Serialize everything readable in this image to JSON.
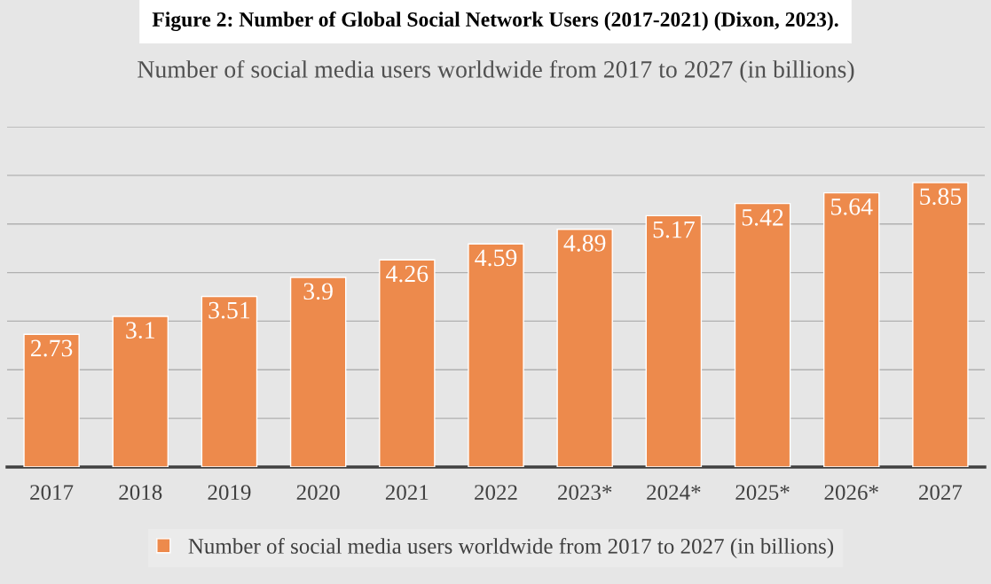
{
  "chart_data": {
    "type": "bar",
    "title": "Number of social media users worldwide from 2017 to 2027 (in billions)",
    "annotations": [
      "Figure 2: Number of Global Social Network Users (2017-2021) (Dixon, 2023)."
    ],
    "categories": [
      "2017",
      "2018",
      "2019",
      "2020",
      "2021",
      "2022",
      "2023*",
      "2024*",
      "2025*",
      "2026*",
      "2027"
    ],
    "series": [
      {
        "name": "Number of social media users worldwide from 2017 to 2027 (in billions)",
        "color": "#ed8a4c",
        "values": [
          2.73,
          3.1,
          3.51,
          3.9,
          4.26,
          4.59,
          4.89,
          5.17,
          5.42,
          5.64,
          5.85
        ]
      }
    ],
    "data_labels": true,
    "ylim": [
      0,
      7
    ],
    "yticks": [
      {
        "value": 0,
        "label": null
      },
      {
        "value": 1,
        "label": null
      },
      {
        "value": 2,
        "label": null
      },
      {
        "value": 3,
        "label": null
      },
      {
        "value": 4,
        "label": null
      },
      {
        "value": 5,
        "label": null
      },
      {
        "value": 6,
        "label": null
      },
      {
        "value": 7,
        "label": null
      }
    ],
    "grid": "y",
    "legend": "bottom",
    "tick_labels": "x"
  }
}
